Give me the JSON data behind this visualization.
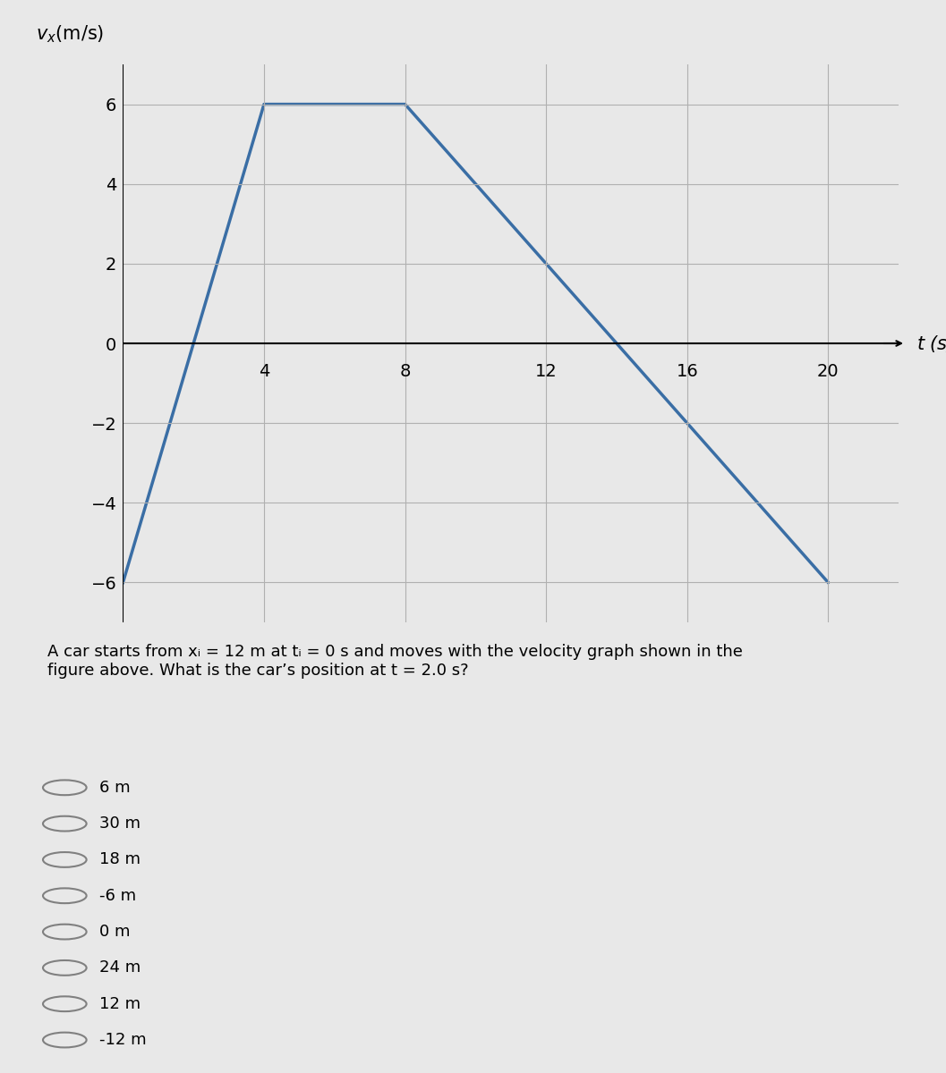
{
  "graph_t": [
    0,
    4,
    8,
    14,
    20
  ],
  "graph_v": [
    -6,
    6,
    6,
    0,
    -6
  ],
  "xlim": [
    0,
    22
  ],
  "ylim": [
    -7,
    7
  ],
  "xticks": [
    4,
    8,
    12,
    16,
    20
  ],
  "yticks": [
    -6,
    -4,
    -2,
    0,
    2,
    4,
    6
  ],
  "xlabel": "t (s)",
  "ylabel": "v_x(m/s)",
  "line_color": "#3a6ea5",
  "line_width": 2.5,
  "grid_color": "#b0b0b0",
  "bg_color": "#e8e8e8",
  "question_text": "A car starts from xᵢ = 12 m at tᵢ = 0 s and moves with the velocity graph shown in the\nfigure above. What is the car’s position at t = 2.0 s?",
  "choices": [
    "6 m",
    "30 m",
    "18 m",
    "-6 m",
    "0 m",
    "24 m",
    "12 m",
    "-12 m"
  ],
  "axis_line_color": "#000000",
  "tick_label_fontsize": 14,
  "axis_label_fontsize": 15
}
